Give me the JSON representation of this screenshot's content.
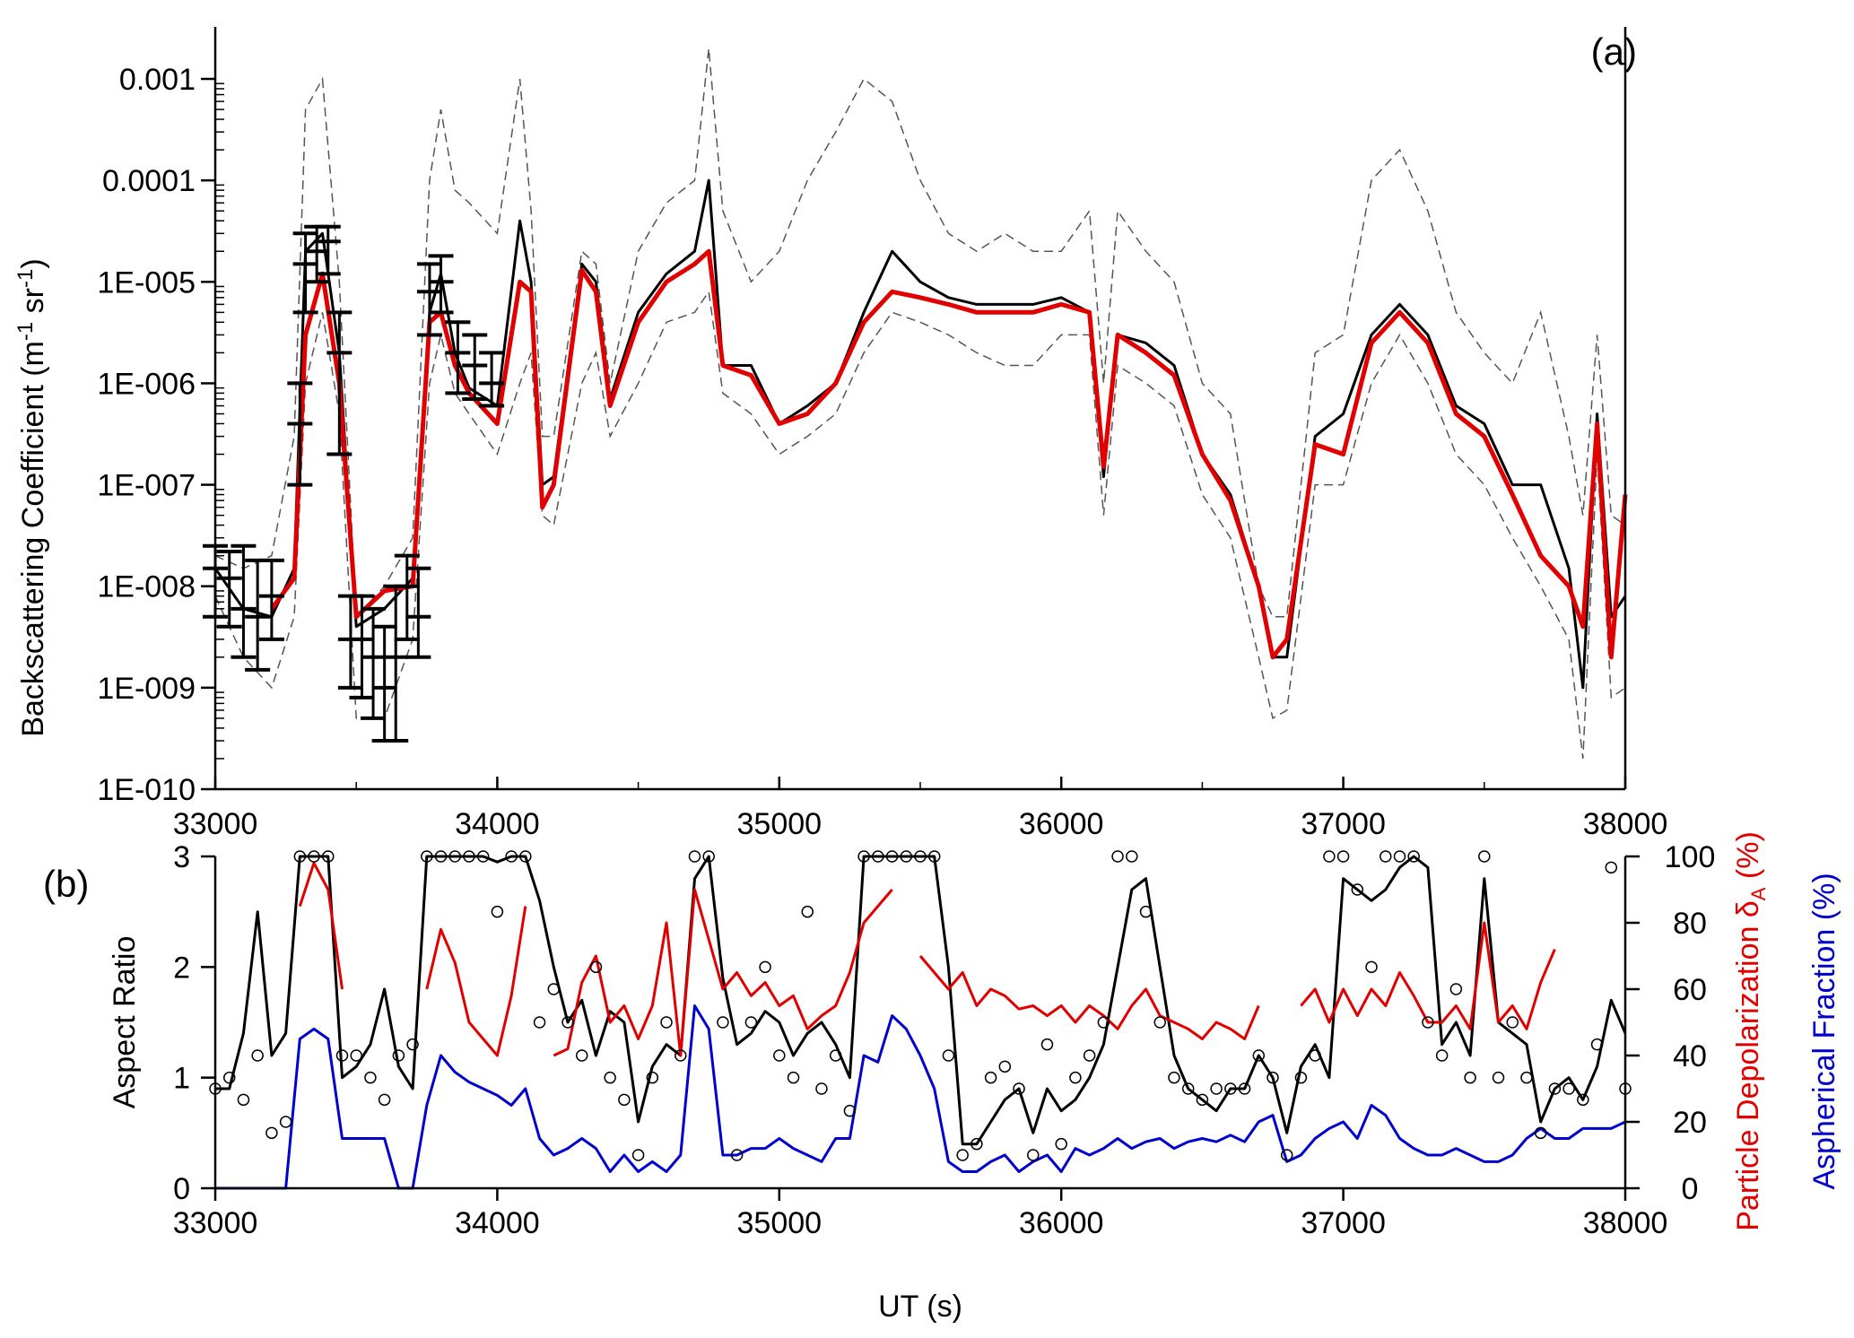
{
  "figure": {
    "panels": [
      "(a)",
      "(b)"
    ]
  },
  "chart_data": [
    {
      "type": "line",
      "panel_label": "(a)",
      "xlabel": "",
      "ylabel": "Backscattering Coefficient (m-1 sr-1)",
      "ylabel_parts": [
        "Backscattering Coefficient (m",
        "-1",
        " sr",
        "-1",
        ")"
      ],
      "yscale": "log",
      "xlim": [
        33000,
        38000
      ],
      "ylim": [
        1e-10,
        0.002
      ],
      "x_ticks": [
        33000,
        34000,
        35000,
        36000,
        37000,
        38000
      ],
      "x_tick_labels": [
        "33000",
        "34000",
        "35000",
        "36000",
        "37000",
        "38000"
      ],
      "y_ticks": [
        1e-10,
        1e-09,
        1e-08,
        1e-07,
        1e-06,
        1e-05,
        0.0001,
        0.001
      ],
      "y_tick_labels": [
        "1E-010",
        "1E-009",
        "1E-008",
        "1E-007",
        "1E-006",
        "1E-005",
        "0.0001",
        "0.001"
      ],
      "grid": false,
      "colors": {
        "black": "#000000",
        "red": "#e00000",
        "dashed": "#555555"
      },
      "x": [
        33000,
        33100,
        33200,
        33280,
        33320,
        33380,
        33440,
        33500,
        33600,
        33700,
        33760,
        33800,
        33850,
        33900,
        34000,
        34080,
        34120,
        34160,
        34200,
        34300,
        34350,
        34400,
        34500,
        34600,
        34700,
        34750,
        34800,
        34900,
        35000,
        35100,
        35200,
        35300,
        35400,
        35500,
        35600,
        35700,
        35800,
        35900,
        36000,
        36100,
        36150,
        36200,
        36300,
        36400,
        36500,
        36600,
        36700,
        36750,
        36800,
        36900,
        37000,
        37100,
        37200,
        37300,
        37400,
        37500,
        37600,
        37700,
        37800,
        37850,
        37900,
        37950,
        38000
      ],
      "series": [
        {
          "style": "solid-black",
          "values": [
            1.5e-08,
            6e-09,
            5e-09,
            1.5e-08,
            2e-05,
            3e-05,
            2e-06,
            4e-09,
            6e-09,
            1.2e-08,
            5e-06,
            1.2e-05,
            2e-06,
            9e-07,
            6e-07,
            4e-05,
            1e-05,
            1e-07,
            1.2e-07,
            1.5e-05,
            1e-05,
            7e-07,
            5e-06,
            1.2e-05,
            2e-05,
            0.0001,
            1.5e-06,
            1.5e-06,
            4e-07,
            6e-07,
            1e-06,
            5e-06,
            2e-05,
            1e-05,
            7e-06,
            6e-06,
            6e-06,
            6e-06,
            7e-06,
            5e-06,
            1.2e-07,
            3e-06,
            2.5e-06,
            1.5e-06,
            2e-07,
            8e-08,
            1e-08,
            2e-09,
            2e-09,
            3e-07,
            5e-07,
            3e-06,
            6e-06,
            3e-06,
            6e-07,
            4e-07,
            1e-07,
            1e-07,
            1.5e-08,
            1e-09,
            5e-07,
            5e-09,
            8e-09
          ]
        },
        {
          "style": "solid-red",
          "values": [
            null,
            null,
            6e-09,
            1.2e-08,
            3e-06,
            1.2e-05,
            1e-06,
            5e-09,
            9e-09,
            1e-08,
            4e-06,
            5e-06,
            1.5e-06,
            8e-07,
            4e-07,
            1e-05,
            8e-06,
            6e-08,
            1e-07,
            1.3e-05,
            8e-06,
            6e-07,
            4e-06,
            1e-05,
            1.5e-05,
            2e-05,
            1.5e-06,
            1.2e-06,
            4e-07,
            5e-07,
            1e-06,
            4e-06,
            8e-06,
            7e-06,
            6e-06,
            5e-06,
            5e-06,
            5e-06,
            6e-06,
            5e-06,
            1.5e-07,
            3e-06,
            2e-06,
            1.2e-06,
            2e-07,
            7e-08,
            1e-08,
            2e-09,
            3e-09,
            2.5e-07,
            2e-07,
            2.5e-06,
            5e-06,
            2.5e-06,
            5e-07,
            3e-07,
            8e-08,
            2e-08,
            1e-08,
            4e-09,
            4e-07,
            2e-09,
            8e-08
          ]
        },
        {
          "style": "dashed-upper",
          "values": [
            2e-08,
            1.5e-08,
            2e-08,
            3e-07,
            0.0005,
            0.001,
            1e-05,
            5e-09,
            1e-08,
            3e-08,
            0.0001,
            0.0005,
            8e-05,
            6e-05,
            3e-05,
            0.001,
            5e-05,
            3e-07,
            3e-07,
            2e-05,
            1.5e-05,
            1e-06,
            2e-05,
            6e-05,
            0.0001,
            0.002,
            5e-05,
            1e-05,
            2e-05,
            0.0001,
            0.0003,
            0.001,
            0.0006,
            0.0001,
            3e-05,
            2e-05,
            3e-05,
            2e-05,
            2e-05,
            5e-05,
            1e-06,
            5e-05,
            2e-05,
            1e-05,
            1e-06,
            5e-07,
            1e-08,
            5e-09,
            5e-09,
            2e-06,
            3e-06,
            0.0001,
            0.0002,
            5e-05,
            5e-06,
            2e-06,
            1e-06,
            5e-06,
            3e-07,
            5e-08,
            3e-06,
            5e-08,
            4e-08
          ]
        },
        {
          "style": "dashed-lower",
          "values": [
            8e-09,
            2e-09,
            1e-09,
            5e-09,
            1e-06,
            5e-06,
            5e-07,
            5e-10,
            5e-10,
            3e-09,
            1e-06,
            3e-06,
            8e-07,
            5e-07,
            2e-07,
            1e-06,
            2e-06,
            5e-08,
            4e-08,
            1e-06,
            2e-06,
            3e-07,
            1e-06,
            4e-06,
            5e-06,
            8e-06,
            8e-07,
            5e-07,
            2e-07,
            3e-07,
            5e-07,
            2e-06,
            5e-06,
            4e-06,
            3e-06,
            2e-06,
            1.5e-06,
            1.5e-06,
            3e-06,
            3e-06,
            5e-08,
            1.5e-06,
            1e-06,
            6e-07,
            8e-08,
            3e-08,
            2e-09,
            5e-10,
            6e-10,
            1e-07,
            1e-07,
            1e-06,
            3e-06,
            1e-06,
            2e-07,
            1e-07,
            3e-08,
            1e-08,
            3e-09,
            2e-10,
            2e-07,
            8e-10,
            1e-09
          ]
        }
      ],
      "error_bars": [
        {
          "x": 33000,
          "y": 1.5e-08,
          "lo": 5e-09,
          "hi": 2.5e-08
        },
        {
          "x": 33050,
          "y": 1.2e-08,
          "lo": 4e-09,
          "hi": 2.2e-08
        },
        {
          "x": 33100,
          "y": 6e-09,
          "lo": 2e-09,
          "hi": 2.5e-08
        },
        {
          "x": 33150,
          "y": 5e-09,
          "lo": 1.5e-09,
          "hi": 1.8e-08
        },
        {
          "x": 33200,
          "y": 8e-09,
          "lo": 3e-09,
          "hi": 1.8e-08
        },
        {
          "x": 33300,
          "y": 4e-07,
          "lo": 1e-07,
          "hi": 1e-06
        },
        {
          "x": 33320,
          "y": 1.5e-05,
          "lo": 5e-06,
          "hi": 3e-05
        },
        {
          "x": 33360,
          "y": 2e-05,
          "lo": 1e-05,
          "hi": 3.5e-05
        },
        {
          "x": 33400,
          "y": 2.5e-05,
          "lo": 1.2e-05,
          "hi": 3.5e-05
        },
        {
          "x": 33440,
          "y": 2e-06,
          "lo": 2e-07,
          "hi": 5e-06
        },
        {
          "x": 33480,
          "y": 3e-09,
          "lo": 1e-09,
          "hi": 8e-09
        },
        {
          "x": 33520,
          "y": 3e-09,
          "lo": 8e-10,
          "hi": 8e-09
        },
        {
          "x": 33560,
          "y": 2e-09,
          "lo": 5e-10,
          "hi": 6e-09
        },
        {
          "x": 33600,
          "y": 1e-09,
          "lo": 3e-10,
          "hi": 4e-09
        },
        {
          "x": 33640,
          "y": 2e-09,
          "lo": 3e-10,
          "hi": 1e-08
        },
        {
          "x": 33680,
          "y": 1e-08,
          "lo": 3e-09,
          "hi": 2e-08
        },
        {
          "x": 33720,
          "y": 5e-09,
          "lo": 2e-09,
          "hi": 1.5e-08
        },
        {
          "x": 33760,
          "y": 8e-06,
          "lo": 3e-06,
          "hi": 1.5e-05
        },
        {
          "x": 33800,
          "y": 1e-05,
          "lo": 5e-06,
          "hi": 1.8e-05
        },
        {
          "x": 33860,
          "y": 2e-06,
          "lo": 8e-07,
          "hi": 4e-06
        },
        {
          "x": 33920,
          "y": 1.5e-06,
          "lo": 7e-07,
          "hi": 3e-06
        },
        {
          "x": 33980,
          "y": 1e-06,
          "lo": 6e-07,
          "hi": 2e-06
        }
      ]
    },
    {
      "type": "line",
      "panel_label": "(b)",
      "xlabel": "UT (s)",
      "ylabel": "Aspect Ratio",
      "ylabel_right_1": "Particle Depolarization δA (%)",
      "ylabel_right_1_parts": [
        "Particle Depolarization δ",
        "A",
        " (%)"
      ],
      "ylabel_right_2": "Aspherical Fraction (%)",
      "xlim": [
        33000,
        38000
      ],
      "ylim_left": [
        0,
        3
      ],
      "ylim_right": [
        0,
        100
      ],
      "x_ticks": [
        33000,
        34000,
        35000,
        36000,
        37000,
        38000
      ],
      "x_tick_labels": [
        "33000",
        "34000",
        "35000",
        "36000",
        "37000",
        "38000"
      ],
      "y_left_ticks": [
        0,
        1,
        2,
        3
      ],
      "y_left_tick_labels": [
        "0",
        "1",
        "2",
        "3"
      ],
      "y_right_ticks": [
        0,
        20,
        40,
        60,
        80,
        100
      ],
      "y_right_tick_labels": [
        "0",
        "20",
        "40",
        "60",
        "80",
        "100"
      ],
      "grid": false,
      "colors": {
        "aspect_ratio": "#000000",
        "depolarization": "#e00000",
        "aspherical": "#0000cc",
        "circles": "#000000"
      },
      "x": [
        33000,
        33050,
        33100,
        33150,
        33200,
        33250,
        33300,
        33350,
        33400,
        33450,
        33500,
        33550,
        33600,
        33650,
        33700,
        33750,
        33800,
        33850,
        33900,
        33950,
        34000,
        34050,
        34100,
        34150,
        34200,
        34250,
        34300,
        34350,
        34400,
        34450,
        34500,
        34550,
        34600,
        34650,
        34700,
        34750,
        34800,
        34850,
        34900,
        34950,
        35000,
        35050,
        35100,
        35150,
        35200,
        35250,
        35300,
        35350,
        35400,
        35450,
        35500,
        35550,
        35600,
        35650,
        35700,
        35750,
        35800,
        35850,
        35900,
        35950,
        36000,
        36050,
        36100,
        36150,
        36200,
        36250,
        36300,
        36350,
        36400,
        36450,
        36500,
        36550,
        36600,
        36650,
        36700,
        36750,
        36800,
        36850,
        36900,
        36950,
        37000,
        37050,
        37100,
        37150,
        37200,
        37250,
        37300,
        37350,
        37400,
        37450,
        37500,
        37550,
        37600,
        37650,
        37700,
        37750,
        37800,
        37850,
        37900,
        37950,
        38000
      ],
      "series": [
        {
          "name": "",
          "axis": "left",
          "style": "aspect_ratio",
          "values": [
            0.9,
            0.9,
            1.4,
            2.5,
            1.2,
            1.4,
            3.0,
            3.0,
            3.0,
            1.0,
            1.1,
            1.3,
            1.8,
            1.1,
            0.9,
            3.0,
            3.0,
            3.0,
            3.0,
            3.0,
            2.95,
            3.0,
            3.0,
            2.6,
            2.0,
            1.5,
            1.7,
            1.2,
            1.6,
            1.5,
            0.6,
            1.1,
            1.3,
            1.2,
            2.8,
            3.0,
            1.9,
            1.3,
            1.4,
            1.6,
            1.5,
            1.2,
            1.4,
            1.5,
            1.3,
            1.0,
            3.0,
            3.0,
            3.0,
            3.0,
            3.0,
            3.0,
            2.0,
            0.4,
            0.4,
            0.6,
            0.8,
            0.9,
            0.5,
            0.9,
            0.7,
            0.8,
            1.0,
            1.3,
            2.0,
            2.7,
            2.8,
            2.0,
            1.2,
            0.9,
            0.8,
            0.7,
            0.9,
            0.9,
            1.2,
            1.0,
            0.5,
            1.1,
            1.3,
            1.0,
            2.8,
            2.7,
            2.6,
            2.7,
            2.9,
            3.0,
            2.9,
            1.3,
            1.5,
            1.2,
            2.8,
            1.5,
            1.4,
            1.3,
            0.6,
            0.9,
            1.0,
            0.8,
            1.1,
            1.7,
            1.4
          ]
        },
        {
          "name": "",
          "axis": "right",
          "style": "depolarization",
          "values": [
            null,
            null,
            null,
            null,
            null,
            null,
            85,
            98,
            90,
            60,
            null,
            null,
            null,
            null,
            null,
            60,
            78,
            68,
            50,
            45,
            40,
            58,
            85,
            null,
            40,
            42,
            62,
            70,
            50,
            55,
            45,
            55,
            80,
            40,
            90,
            75,
            60,
            65,
            58,
            62,
            55,
            58,
            48,
            52,
            55,
            65,
            80,
            85,
            90,
            null,
            70,
            65,
            60,
            65,
            55,
            60,
            58,
            54,
            55,
            52,
            55,
            50,
            55,
            52,
            48,
            55,
            60,
            52,
            50,
            48,
            45,
            50,
            48,
            45,
            55,
            null,
            null,
            55,
            60,
            50,
            60,
            52,
            60,
            55,
            65,
            58,
            50,
            50,
            55,
            48,
            80,
            50,
            55,
            48,
            62,
            72,
            null,
            null,
            null,
            null,
            null
          ]
        },
        {
          "name": "",
          "axis": "right",
          "style": "aspherical",
          "values": [
            0,
            0,
            0,
            0,
            0,
            0,
            45,
            48,
            45,
            15,
            15,
            15,
            15,
            0,
            0,
            25,
            40,
            35,
            32,
            30,
            28,
            25,
            30,
            15,
            10,
            12,
            15,
            12,
            5,
            10,
            5,
            8,
            5,
            10,
            55,
            48,
            10,
            10,
            12,
            12,
            15,
            12,
            10,
            8,
            15,
            15,
            40,
            38,
            52,
            48,
            40,
            30,
            8,
            5,
            5,
            8,
            10,
            5,
            8,
            10,
            5,
            12,
            10,
            12,
            15,
            12,
            14,
            15,
            12,
            14,
            15,
            14,
            16,
            14,
            20,
            22,
            8,
            10,
            15,
            18,
            20,
            15,
            25,
            22,
            15,
            12,
            10,
            10,
            12,
            10,
            8,
            8,
            10,
            15,
            18,
            15,
            15,
            18,
            18,
            18,
            20
          ]
        },
        {
          "name": "",
          "axis": "left",
          "style": "circles",
          "values": [
            0.9,
            1.0,
            0.8,
            1.2,
            0.5,
            0.6,
            3.0,
            3.0,
            3.0,
            1.2,
            1.2,
            1.0,
            0.8,
            1.2,
            1.3,
            3.0,
            3.0,
            3.0,
            3.0,
            3.0,
            2.5,
            3.0,
            3.0,
            1.5,
            1.8,
            1.5,
            1.2,
            2.0,
            1.0,
            0.8,
            0.3,
            1.0,
            1.5,
            1.2,
            3.0,
            3.0,
            1.5,
            0.3,
            1.5,
            2.0,
            1.2,
            1.0,
            2.5,
            0.9,
            1.2,
            0.7,
            3.0,
            3.0,
            3.0,
            3.0,
            3.0,
            3.0,
            1.2,
            0.3,
            0.4,
            1.0,
            1.1,
            0.9,
            0.3,
            1.3,
            0.4,
            1.0,
            1.2,
            1.5,
            3.0,
            3.0,
            2.5,
            1.5,
            1.0,
            0.9,
            0.8,
            0.9,
            0.9,
            0.9,
            1.2,
            1.0,
            0.3,
            1.0,
            1.2,
            3.0,
            3.0,
            2.7,
            2.0,
            3.0,
            3.0,
            3.0,
            1.5,
            1.2,
            1.8,
            1.0,
            3.0,
            1.0,
            1.5,
            1.0,
            0.5,
            0.9,
            0.9,
            0.8,
            1.3,
            2.9,
            0.9
          ]
        }
      ]
    }
  ]
}
